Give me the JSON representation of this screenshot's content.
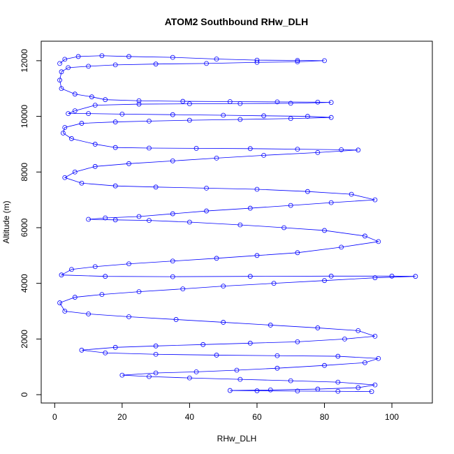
{
  "chart_data": {
    "type": "scatter",
    "title": "ATOM2 Southbound RHw_DLH",
    "xlabel": "RHw_DLH",
    "ylabel": "Altitude (m)",
    "xlim": [
      -4,
      112
    ],
    "ylim": [
      -300,
      12700
    ],
    "x_ticks": [
      0,
      20,
      40,
      60,
      80,
      100
    ],
    "y_ticks": [
      0,
      2000,
      4000,
      6000,
      8000,
      10000,
      12000
    ],
    "grid": false,
    "legend": "none",
    "marker": "open-circle",
    "connected": true,
    "color": "#0000ff",
    "series": [
      {
        "points": [
          [
            1.5,
            11900
          ],
          [
            3.0,
            12050
          ],
          [
            7.0,
            12150
          ],
          [
            14.0,
            12180
          ],
          [
            22.0,
            12150
          ],
          [
            35.0,
            12120
          ],
          [
            48.0,
            12060
          ],
          [
            60.0,
            12020
          ],
          [
            72.0,
            12010
          ],
          [
            80.0,
            12000
          ],
          [
            72.0,
            11960
          ],
          [
            60.0,
            11940
          ],
          [
            45.0,
            11900
          ],
          [
            30.0,
            11880
          ],
          [
            18.0,
            11850
          ],
          [
            10.0,
            11800
          ],
          [
            4.0,
            11750
          ],
          [
            2.0,
            11600
          ],
          [
            1.5,
            11300
          ],
          [
            2.0,
            11000
          ],
          [
            6.0,
            10800
          ],
          [
            11.0,
            10700
          ],
          [
            15.0,
            10600
          ],
          [
            25.0,
            10560
          ],
          [
            38.0,
            10540
          ],
          [
            52.0,
            10530
          ],
          [
            66.0,
            10520
          ],
          [
            78.0,
            10510
          ],
          [
            82.0,
            10500
          ],
          [
            70.0,
            10470
          ],
          [
            55.0,
            10460
          ],
          [
            40.0,
            10450
          ],
          [
            25.0,
            10440
          ],
          [
            12.0,
            10400
          ],
          [
            6.0,
            10200
          ],
          [
            4.0,
            10100
          ],
          [
            10.0,
            10100
          ],
          [
            20.0,
            10080
          ],
          [
            35.0,
            10060
          ],
          [
            50.0,
            10040
          ],
          [
            62.0,
            10020
          ],
          [
            75.0,
            10000
          ],
          [
            82.0,
            9960
          ],
          [
            70.0,
            9920
          ],
          [
            55.0,
            9890
          ],
          [
            40.0,
            9860
          ],
          [
            28.0,
            9830
          ],
          [
            18.0,
            9800
          ],
          [
            8.0,
            9750
          ],
          [
            3.0,
            9600
          ],
          [
            2.5,
            9400
          ],
          [
            5.0,
            9200
          ],
          [
            12.0,
            9000
          ],
          [
            18.0,
            8880
          ],
          [
            28.0,
            8860
          ],
          [
            42.0,
            8850
          ],
          [
            58.0,
            8840
          ],
          [
            72.0,
            8820
          ],
          [
            85.0,
            8800
          ],
          [
            90.0,
            8790
          ],
          [
            78.0,
            8700
          ],
          [
            62.0,
            8600
          ],
          [
            48.0,
            8500
          ],
          [
            35.0,
            8400
          ],
          [
            22.0,
            8300
          ],
          [
            12.0,
            8200
          ],
          [
            6.0,
            8000
          ],
          [
            3.0,
            7800
          ],
          [
            8.0,
            7600
          ],
          [
            18.0,
            7500
          ],
          [
            30.0,
            7460
          ],
          [
            45.0,
            7420
          ],
          [
            60.0,
            7380
          ],
          [
            75.0,
            7300
          ],
          [
            88.0,
            7200
          ],
          [
            95.0,
            7000
          ],
          [
            82.0,
            6900
          ],
          [
            70.0,
            6800
          ],
          [
            58.0,
            6700
          ],
          [
            45.0,
            6600
          ],
          [
            35.0,
            6500
          ],
          [
            25.0,
            6400
          ],
          [
            15.0,
            6350
          ],
          [
            10.0,
            6300
          ],
          [
            18.0,
            6280
          ],
          [
            28.0,
            6260
          ],
          [
            40.0,
            6200
          ],
          [
            55.0,
            6100
          ],
          [
            68.0,
            6000
          ],
          [
            80.0,
            5900
          ],
          [
            92.0,
            5700
          ],
          [
            96.0,
            5500
          ],
          [
            85.0,
            5300
          ],
          [
            72.0,
            5100
          ],
          [
            60.0,
            5000
          ],
          [
            48.0,
            4900
          ],
          [
            35.0,
            4800
          ],
          [
            22.0,
            4700
          ],
          [
            12.0,
            4600
          ],
          [
            5.0,
            4500
          ],
          [
            2.0,
            4300
          ],
          [
            15.0,
            4250
          ],
          [
            35.0,
            4240
          ],
          [
            58.0,
            4250
          ],
          [
            82.0,
            4260
          ],
          [
            100.0,
            4260
          ],
          [
            107.0,
            4250
          ],
          [
            95.0,
            4200
          ],
          [
            80.0,
            4100
          ],
          [
            65.0,
            4000
          ],
          [
            50.0,
            3900
          ],
          [
            38.0,
            3800
          ],
          [
            25.0,
            3700
          ],
          [
            14.0,
            3600
          ],
          [
            6.0,
            3500
          ],
          [
            1.5,
            3300
          ],
          [
            3.0,
            3000
          ],
          [
            10.0,
            2900
          ],
          [
            22.0,
            2800
          ],
          [
            36.0,
            2700
          ],
          [
            50.0,
            2600
          ],
          [
            64.0,
            2500
          ],
          [
            78.0,
            2400
          ],
          [
            90.0,
            2300
          ],
          [
            95.0,
            2100
          ],
          [
            86.0,
            2000
          ],
          [
            72.0,
            1900
          ],
          [
            58.0,
            1850
          ],
          [
            44.0,
            1800
          ],
          [
            30.0,
            1750
          ],
          [
            18.0,
            1700
          ],
          [
            8.0,
            1600
          ],
          [
            15.0,
            1500
          ],
          [
            30.0,
            1450
          ],
          [
            48.0,
            1420
          ],
          [
            66.0,
            1400
          ],
          [
            84.0,
            1380
          ],
          [
            96.0,
            1300
          ],
          [
            92.0,
            1150
          ],
          [
            80.0,
            1050
          ],
          [
            66.0,
            950
          ],
          [
            54.0,
            880
          ],
          [
            42.0,
            820
          ],
          [
            30.0,
            780
          ],
          [
            20.0,
            700
          ],
          [
            28.0,
            650
          ],
          [
            40.0,
            600
          ],
          [
            55.0,
            550
          ],
          [
            70.0,
            500
          ],
          [
            84.0,
            450
          ],
          [
            95.0,
            350
          ],
          [
            90.0,
            250
          ],
          [
            78.0,
            200
          ],
          [
            64.0,
            170
          ],
          [
            52.0,
            150
          ],
          [
            60.0,
            140
          ],
          [
            72.0,
            130
          ],
          [
            84.0,
            120
          ],
          [
            94.0,
            110
          ]
        ]
      }
    ]
  }
}
